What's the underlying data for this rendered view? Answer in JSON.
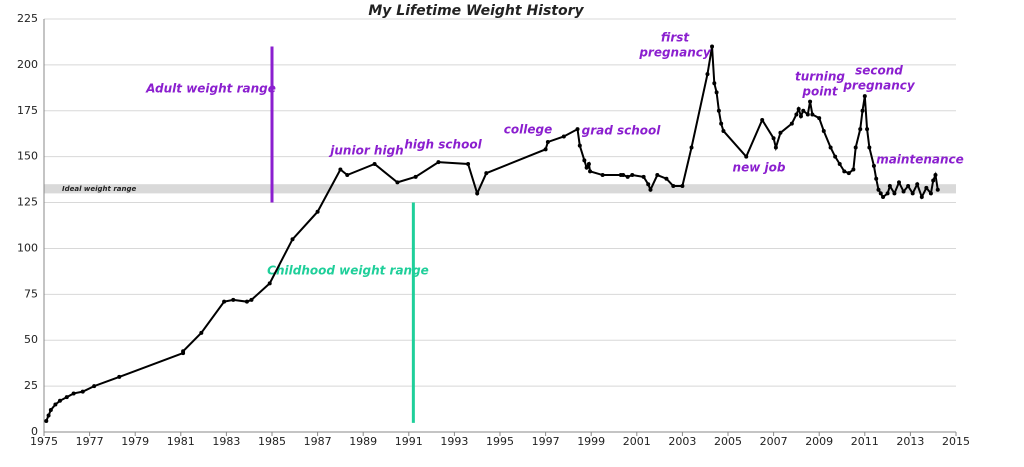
{
  "chart_data": {
    "type": "line",
    "title": "My Lifetime Weight History",
    "x": [
      1975.1,
      1975.2,
      1975.3,
      1975.5,
      1975.7,
      1976.0,
      1976.3,
      1976.7,
      1977.2,
      1978.3,
      1981.1,
      1981.1,
      1981.9,
      1982.9,
      1983.3,
      1983.9,
      1984.1,
      1984.9,
      1985.9,
      1987,
      1988,
      1988.3,
      1989.5,
      1990.5,
      1991.3,
      1992.3,
      1993.6,
      1994.0,
      1994.4,
      1997,
      1997.1,
      1997.8,
      1998.4,
      1998.5,
      1998.7,
      1998.8,
      1998.9,
      1998.95,
      1999.5,
      2000.3,
      2000.4,
      2000.6,
      2000.8,
      2001.3,
      2001.5,
      2001.6,
      2001.9,
      2002.3,
      2002.6,
      2003,
      2003.4,
      2004.1,
      2004.3,
      2004.4,
      2004.5,
      2004.6,
      2004.7,
      2004.8,
      2005.8,
      2006.5,
      2007.0,
      2007.1,
      2007.3,
      2007.8,
      2008.0,
      2008.1,
      2008.2,
      2008.3,
      2008.5,
      2008.6,
      2008.7,
      2009.0,
      2009.2,
      2009.5,
      2009.7,
      2009.9,
      2010.1,
      2010.3,
      2010.5,
      2010.6,
      2010.8,
      2010.9,
      2011.0,
      2011.1,
      2011.2,
      2011.4,
      2011.5,
      2011.6,
      2011.7,
      2011.8,
      2012.0,
      2012.1,
      2012.3,
      2012.5,
      2012.7,
      2012.9,
      2013.1,
      2013.3,
      2013.5,
      2013.7,
      2013.9,
      2014.0,
      2014.1,
      2014.2
    ],
    "series": [
      {
        "name": "Weight",
        "color": "#000000",
        "values": [
          6,
          9,
          12,
          15,
          17,
          19,
          21,
          22,
          25,
          30,
          43,
          44,
          54,
          71,
          72,
          71,
          72,
          81,
          105,
          120,
          143,
          140,
          146,
          136,
          139,
          147,
          146,
          130,
          141,
          154,
          158,
          161,
          165,
          156,
          148,
          144,
          146,
          142,
          140,
          140,
          140,
          139,
          140,
          139,
          135,
          132,
          140,
          138,
          134,
          134,
          155,
          195,
          210,
          190,
          185,
          175,
          168,
          164,
          150,
          170,
          160,
          155,
          163,
          168,
          173,
          176,
          172,
          175,
          173,
          180,
          173,
          171,
          164,
          155,
          150,
          146,
          142,
          141,
          143,
          155,
          165,
          175,
          183,
          165,
          155,
          145,
          138,
          132,
          130,
          128,
          130,
          134,
          130,
          136,
          131,
          134,
          130,
          135,
          128,
          133,
          130,
          137,
          140,
          132
        ]
      }
    ],
    "xlim": [
      1975,
      2015
    ],
    "xticks": [
      1975,
      1977,
      1979,
      1981,
      1983,
      1985,
      1987,
      1989,
      1991,
      1993,
      1995,
      1997,
      1999,
      2001,
      2003,
      2005,
      2007,
      2009,
      2011,
      2013,
      2015
    ],
    "ylim": [
      0,
      225
    ],
    "yticks": [
      0,
      25,
      50,
      75,
      100,
      125,
      150,
      175,
      200,
      225
    ],
    "grid": true,
    "band": {
      "label": "Ideal weight range",
      "range": [
        130,
        135
      ],
      "color": "#d9d9d9"
    },
    "vlines": [
      {
        "label": "Adult weight range",
        "x": 1985,
        "range": [
          125,
          210
        ],
        "color": "#8b1fcf"
      },
      {
        "label": "Childhood weight range",
        "x": 1991.2,
        "range": [
          5,
          125
        ],
        "color": "#1fcf9a"
      }
    ],
    "annotations": [
      [
        "junior high"
      ],
      [
        "high school"
      ],
      [
        "college"
      ],
      [
        "grad school"
      ],
      [
        "first",
        "pregnancy"
      ],
      [
        "new job"
      ],
      [
        "turning",
        "point"
      ],
      [
        "second",
        "pregnancy"
      ],
      [
        "maintenance"
      ]
    ],
    "annotation_color": "#8b1fcf"
  }
}
